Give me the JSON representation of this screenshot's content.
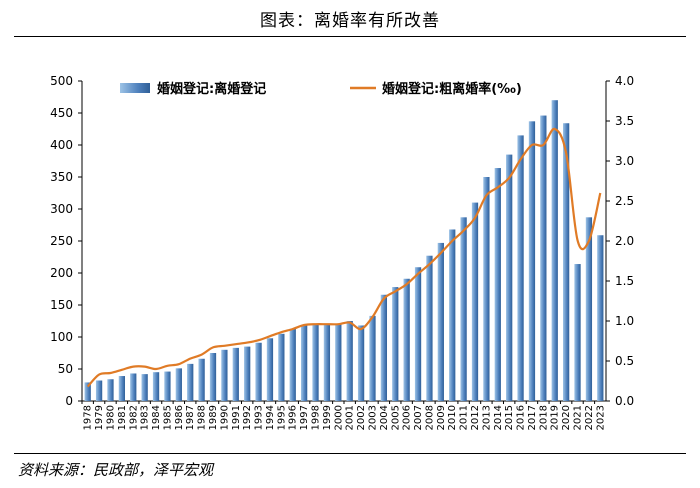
{
  "title": "图表：离婚率有所改善",
  "source": "资料来源：民政部，泽平宏观",
  "chart_data": {
    "type": "bar",
    "categories": [
      "1978",
      "1979",
      "1980",
      "1981",
      "1982",
      "1983",
      "1984",
      "1985",
      "1986",
      "1987",
      "1988",
      "1989",
      "1990",
      "1991",
      "1992",
      "1993",
      "1994",
      "1995",
      "1996",
      "1997",
      "1998",
      "1999",
      "2000",
      "2001",
      "2002",
      "2003",
      "2004",
      "2005",
      "2006",
      "2007",
      "2008",
      "2009",
      "2010",
      "2011",
      "2012",
      "2013",
      "2014",
      "2015",
      "2016",
      "2017",
      "2018",
      "2019",
      "2020",
      "2021",
      "2022",
      "2023"
    ],
    "series": [
      {
        "name": "婚姻登记:离婚登记",
        "type": "bar",
        "axis": "left",
        "color": "#4f81bd",
        "values": [
          29,
          32,
          34,
          39,
          43,
          42,
          45,
          46,
          51,
          58,
          66,
          75,
          80,
          83,
          85,
          91,
          98,
          105,
          113,
          119,
          119,
          120,
          121,
          125,
          118,
          133,
          166,
          178,
          191,
          209,
          227,
          247,
          268,
          287,
          310,
          350,
          364,
          385,
          415,
          437,
          446,
          470,
          434,
          214,
          287,
          259
        ]
      },
      {
        "name": "婚姻登记:粗离婚率(‰)",
        "type": "line",
        "axis": "right",
        "color": "#e07b26",
        "values": [
          0.18,
          0.33,
          0.35,
          0.39,
          0.43,
          0.43,
          0.4,
          0.44,
          0.46,
          0.53,
          0.58,
          0.67,
          0.69,
          0.71,
          0.73,
          0.76,
          0.81,
          0.86,
          0.9,
          0.95,
          0.96,
          0.96,
          0.96,
          0.98,
          0.9,
          1.05,
          1.28,
          1.37,
          1.46,
          1.59,
          1.71,
          1.85,
          2.0,
          2.13,
          2.29,
          2.57,
          2.67,
          2.79,
          3.02,
          3.2,
          3.2,
          3.4,
          3.1,
          2.01,
          2.0,
          2.6
        ]
      }
    ],
    "left_axis": {
      "min": 0,
      "max": 500,
      "ticks": [
        "0",
        "50",
        "100",
        "150",
        "200",
        "250",
        "300",
        "350",
        "400",
        "450",
        "500"
      ]
    },
    "right_axis": {
      "min": 0,
      "max": 4,
      "ticks": [
        "0.0",
        "0.5",
        "1.0",
        "1.5",
        "2.0",
        "2.5",
        "3.0",
        "3.5",
        "4.0"
      ]
    },
    "legend": {
      "bar_label": "婚姻登记:离婚登记",
      "line_label": "婚姻登记:粗离婚率(‰)",
      "placement": "top"
    }
  }
}
